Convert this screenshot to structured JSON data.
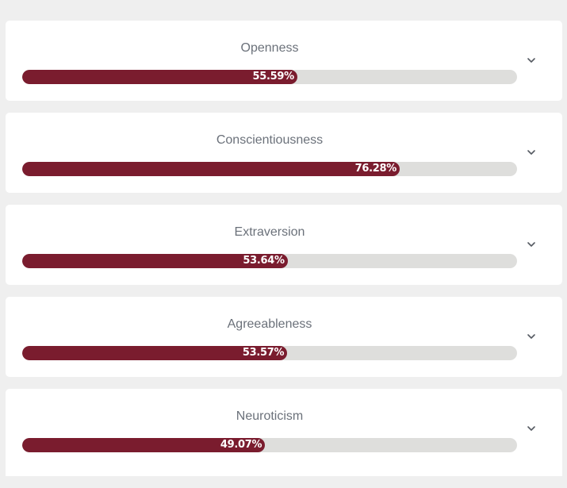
{
  "traits": [
    {
      "key": "openness",
      "label": "Openness",
      "percent": 55.59,
      "percent_label": "55.59%"
    },
    {
      "key": "conscientiousness",
      "label": "Conscientiousness",
      "percent": 76.28,
      "percent_label": "76.28%"
    },
    {
      "key": "extraversion",
      "label": "Extraversion",
      "percent": 53.64,
      "percent_label": "53.64%"
    },
    {
      "key": "agreeableness",
      "label": "Agreeableness",
      "percent": 53.57,
      "percent_label": "53.57%"
    },
    {
      "key": "neuroticism",
      "label": "Neuroticism",
      "percent": 49.07,
      "percent_label": "49.07%"
    }
  ],
  "icons": {
    "expand": "chevron-down-icon"
  },
  "colors": {
    "bar_fill": "#7a1c2e",
    "bar_track": "#dededc",
    "title_text": "#6b717a",
    "background": "#efefef",
    "card": "#ffffff"
  }
}
